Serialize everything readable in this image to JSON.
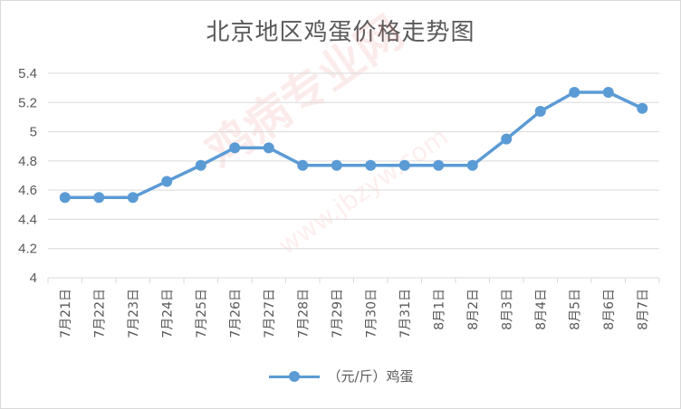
{
  "chart_data": {
    "type": "line",
    "title": "北京地区鸡蛋价格走势图",
    "categories": [
      "7月21日",
      "7月22日",
      "7月23日",
      "7月24日",
      "7月25日",
      "7月26日",
      "7月27日",
      "7月28日",
      "7月29日",
      "7月30日",
      "7月31日",
      "8月1日",
      "8月2日",
      "8月3日",
      "8月4日",
      "8月5日",
      "8月6日",
      "8月7日"
    ],
    "series": [
      {
        "name": "（元/斤）鸡蛋",
        "values": [
          4.55,
          4.55,
          4.55,
          4.66,
          4.77,
          4.89,
          4.89,
          4.77,
          4.77,
          4.77,
          4.77,
          4.77,
          4.77,
          4.95,
          5.14,
          5.27,
          5.27,
          5.16
        ],
        "color": "#5b9bd5"
      }
    ],
    "yticks": [
      "4",
      "4.2",
      "4.4",
      "4.6",
      "4.8",
      "5",
      "5.2",
      "5.4"
    ],
    "ylim": [
      4,
      5.4
    ],
    "grid": true,
    "legend_position": "bottom"
  },
  "watermark": {
    "text1": "鸡病专业网",
    "text2": "www.jbzyw.com"
  }
}
